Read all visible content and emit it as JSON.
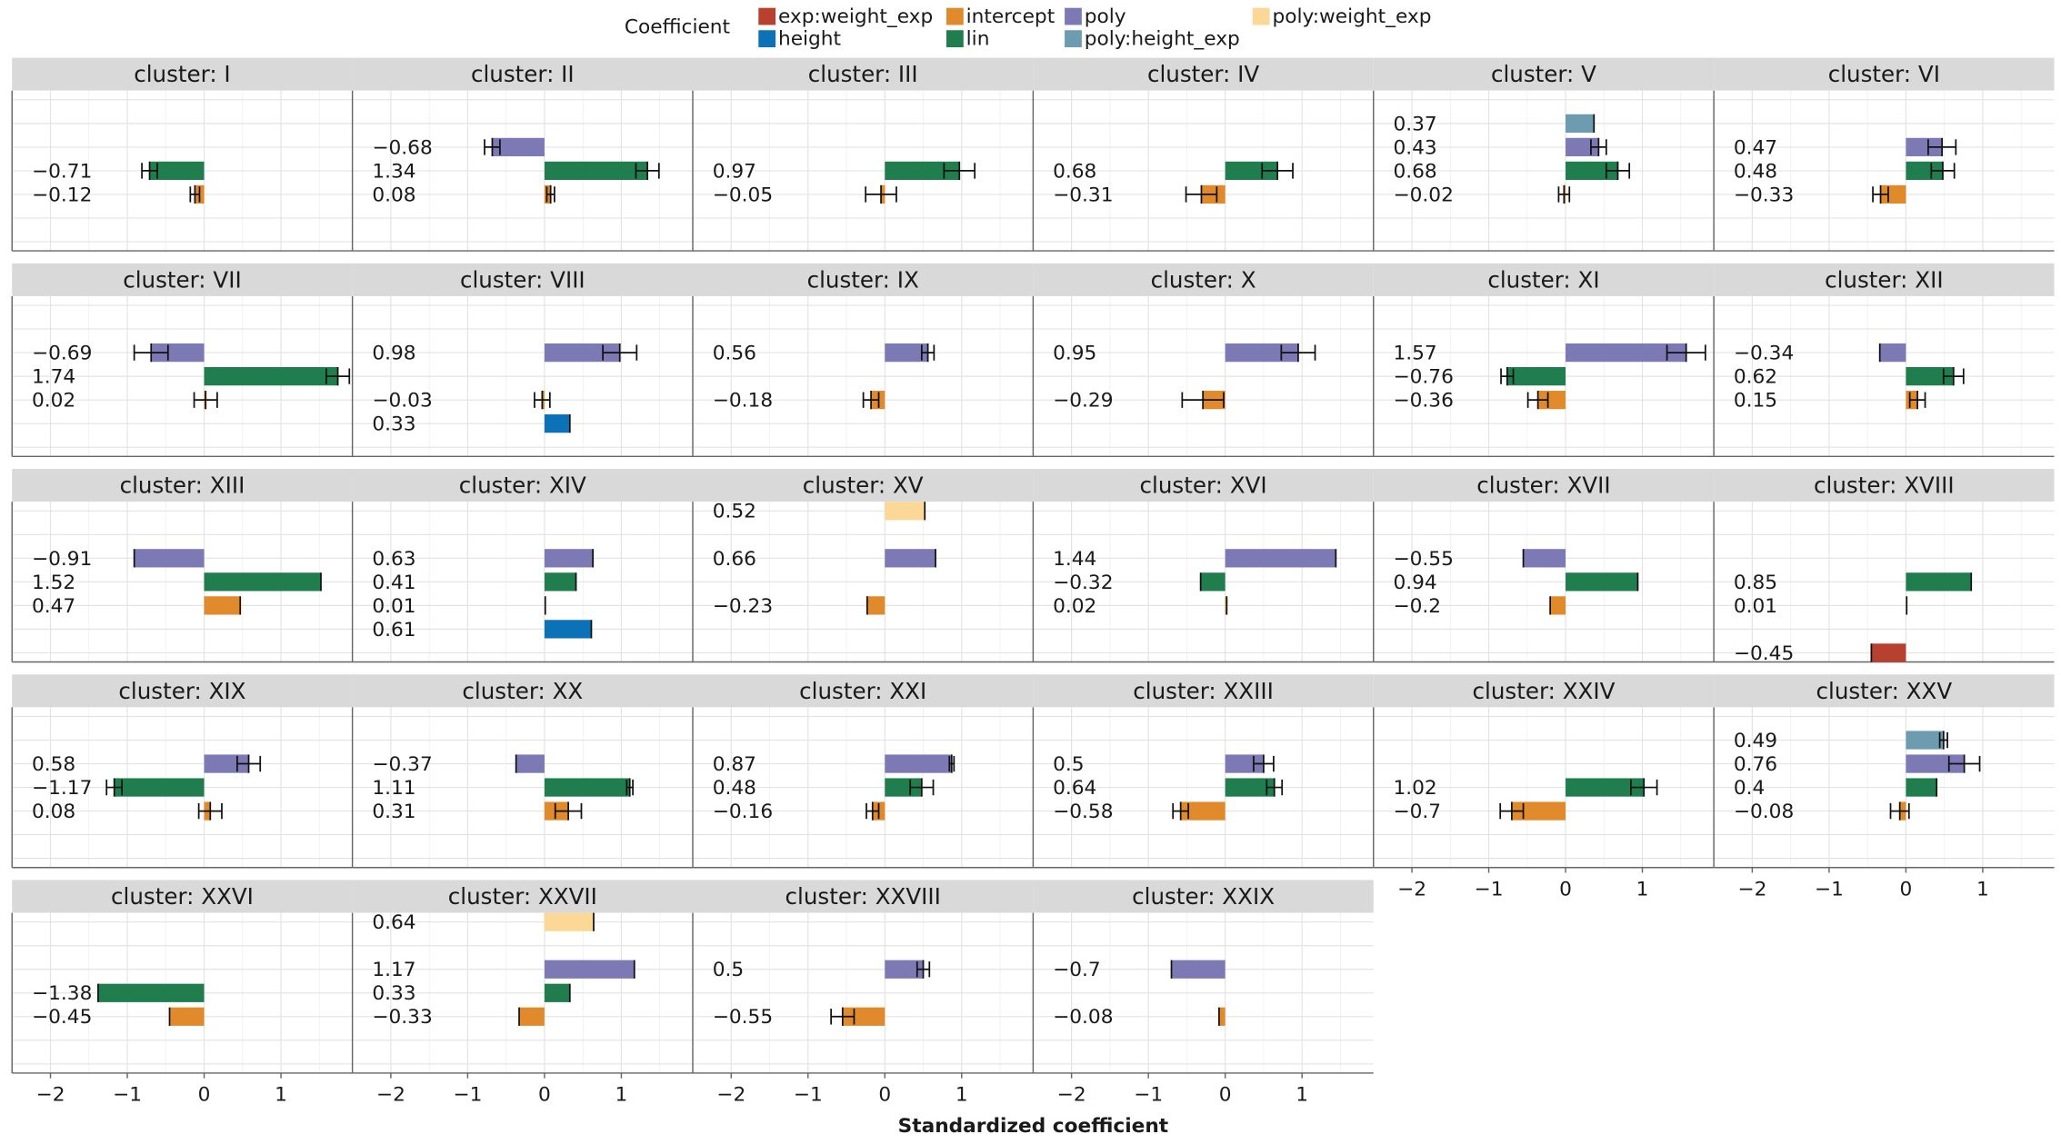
{
  "chart_data": {
    "type": "bar",
    "orientation": "horizontal",
    "legend_title": "Coefficient",
    "xlabel": "Standardized coefficient",
    "xlim": [
      -2.5,
      1.93
    ],
    "xticks": [
      {
        "value": -2,
        "label": "−2"
      },
      {
        "value": -1,
        "label": "−1"
      },
      0,
      1
    ],
    "minor_xticks": [
      -1.5,
      -0.5,
      0.5,
      1.5
    ],
    "grid": true,
    "ncol": 6,
    "coefficients": [
      {
        "name": "exp:weight_exp",
        "color": "#b8402e"
      },
      {
        "name": "height",
        "color": "#0c72b8"
      },
      {
        "name": "intercept",
        "color": "#e08a2c"
      },
      {
        "name": "lin",
        "color": "#1f7d4e"
      },
      {
        "name": "poly",
        "color": "#7c79b5"
      },
      {
        "name": "poly:height_exp",
        "color": "#6d9bb0"
      },
      {
        "name": "poly:weight_exp",
        "color": "#fbd896"
      }
    ],
    "panels": [
      {
        "title": "cluster: I",
        "bars": [
          {
            "coefficient": "lin",
            "value": -0.71,
            "label": "−0.71",
            "error": 0.1
          },
          {
            "coefficient": "intercept",
            "value": -0.12,
            "label": "−0.12",
            "error": 0.06
          }
        ]
      },
      {
        "title": "cluster: II",
        "bars": [
          {
            "coefficient": "poly",
            "value": -0.68,
            "label": "−0.68",
            "error": 0.1
          },
          {
            "coefficient": "lin",
            "value": 1.34,
            "label": "1.34",
            "error": 0.15
          },
          {
            "coefficient": "intercept",
            "value": 0.08,
            "label": "0.08",
            "error": 0.05
          }
        ]
      },
      {
        "title": "cluster: III",
        "bars": [
          {
            "coefficient": "lin",
            "value": 0.97,
            "label": "0.97",
            "error": 0.2
          },
          {
            "coefficient": "intercept",
            "value": -0.05,
            "label": "−0.05",
            "error": 0.2
          }
        ]
      },
      {
        "title": "cluster: IV",
        "bars": [
          {
            "coefficient": "lin",
            "value": 0.68,
            "label": "0.68",
            "error": 0.2
          },
          {
            "coefficient": "intercept",
            "value": -0.31,
            "label": "−0.31",
            "error": 0.2
          }
        ]
      },
      {
        "title": "cluster: V",
        "bars": [
          {
            "coefficient": "poly:height_exp",
            "value": 0.37,
            "label": "0.37"
          },
          {
            "coefficient": "poly",
            "value": 0.43,
            "label": "0.43",
            "error": 0.1
          },
          {
            "coefficient": "lin",
            "value": 0.68,
            "label": "0.68",
            "error": 0.15
          },
          {
            "coefficient": "intercept",
            "value": -0.02,
            "label": "−0.02",
            "error": 0.07
          }
        ]
      },
      {
        "title": "cluster: VI",
        "bars": [
          {
            "coefficient": "poly",
            "value": 0.47,
            "label": "0.47",
            "error": 0.18
          },
          {
            "coefficient": "lin",
            "value": 0.48,
            "label": "0.48",
            "error": 0.15
          },
          {
            "coefficient": "intercept",
            "value": -0.33,
            "label": "−0.33",
            "error": 0.1
          }
        ]
      },
      {
        "title": "cluster: VII",
        "bars": [
          {
            "coefficient": "poly",
            "value": -0.69,
            "label": "−0.69",
            "error": 0.22
          },
          {
            "coefficient": "lin",
            "value": 1.74,
            "label": "1.74",
            "error": 0.15
          },
          {
            "coefficient": "intercept",
            "value": 0.02,
            "label": "0.02",
            "error": 0.15
          }
        ]
      },
      {
        "title": "cluster: VIII",
        "bars": [
          {
            "coefficient": "poly",
            "value": 0.98,
            "label": "0.98",
            "error": 0.22
          },
          {
            "coefficient": "intercept",
            "value": -0.03,
            "label": "−0.03",
            "error": 0.1
          },
          {
            "coefficient": "height",
            "value": 0.33,
            "label": "0.33"
          }
        ]
      },
      {
        "title": "cluster: IX",
        "bars": [
          {
            "coefficient": "poly",
            "value": 0.56,
            "label": "0.56",
            "error": 0.08
          },
          {
            "coefficient": "intercept",
            "value": -0.18,
            "label": "−0.18",
            "error": 0.1
          }
        ]
      },
      {
        "title": "cluster: X",
        "bars": [
          {
            "coefficient": "poly",
            "value": 0.95,
            "label": "0.95",
            "error": 0.22
          },
          {
            "coefficient": "intercept",
            "value": -0.29,
            "label": "−0.29",
            "error": 0.27
          }
        ]
      },
      {
        "title": "cluster: XI",
        "bars": [
          {
            "coefficient": "poly",
            "value": 1.57,
            "label": "1.57",
            "error": 0.25
          },
          {
            "coefficient": "lin",
            "value": -0.76,
            "label": "−0.76",
            "error": 0.08
          },
          {
            "coefficient": "intercept",
            "value": -0.36,
            "label": "−0.36",
            "error": 0.13
          }
        ]
      },
      {
        "title": "cluster: XII",
        "bars": [
          {
            "coefficient": "poly",
            "value": -0.34,
            "label": "−0.34"
          },
          {
            "coefficient": "lin",
            "value": 0.62,
            "label": "0.62",
            "error": 0.13
          },
          {
            "coefficient": "intercept",
            "value": 0.15,
            "label": "0.15",
            "error": 0.1
          }
        ]
      },
      {
        "title": "cluster: XIII",
        "bars": [
          {
            "coefficient": "poly",
            "value": -0.91,
            "label": "−0.91"
          },
          {
            "coefficient": "lin",
            "value": 1.52,
            "label": "1.52"
          },
          {
            "coefficient": "intercept",
            "value": 0.47,
            "label": "0.47"
          }
        ]
      },
      {
        "title": "cluster: XIV",
        "bars": [
          {
            "coefficient": "poly",
            "value": 0.63,
            "label": "0.63"
          },
          {
            "coefficient": "lin",
            "value": 0.41,
            "label": "0.41"
          },
          {
            "coefficient": "intercept",
            "value": 0.01,
            "label": "0.01"
          },
          {
            "coefficient": "height",
            "value": 0.61,
            "label": "0.61"
          }
        ]
      },
      {
        "title": "cluster: XV",
        "bars": [
          {
            "coefficient": "poly:weight_exp",
            "value": 0.52,
            "label": "0.52"
          },
          {
            "coefficient": "poly",
            "value": 0.66,
            "label": "0.66"
          },
          {
            "coefficient": "intercept",
            "value": -0.23,
            "label": "−0.23"
          }
        ]
      },
      {
        "title": "cluster: XVI",
        "bars": [
          {
            "coefficient": "poly",
            "value": 1.44,
            "label": "1.44"
          },
          {
            "coefficient": "lin",
            "value": -0.32,
            "label": "−0.32"
          },
          {
            "coefficient": "intercept",
            "value": 0.02,
            "label": "0.02"
          }
        ]
      },
      {
        "title": "cluster: XVII",
        "bars": [
          {
            "coefficient": "poly",
            "value": -0.55,
            "label": "−0.55"
          },
          {
            "coefficient": "lin",
            "value": 0.94,
            "label": "0.94"
          },
          {
            "coefficient": "intercept",
            "value": -0.2,
            "label": "−0.2"
          }
        ]
      },
      {
        "title": "cluster: XVIII",
        "bars": [
          {
            "coefficient": "lin",
            "value": 0.85,
            "label": "0.85"
          },
          {
            "coefficient": "intercept",
            "value": 0.01,
            "label": "0.01"
          },
          {
            "coefficient": "exp:weight_exp",
            "value": -0.45,
            "label": "−0.45"
          }
        ]
      },
      {
        "title": "cluster: XIX",
        "bars": [
          {
            "coefficient": "poly",
            "value": 0.58,
            "label": "0.58",
            "error": 0.15
          },
          {
            "coefficient": "lin",
            "value": -1.17,
            "label": "−1.17",
            "error": 0.1
          },
          {
            "coefficient": "intercept",
            "value": 0.08,
            "label": "0.08",
            "error": 0.15
          }
        ]
      },
      {
        "title": "cluster: XX",
        "bars": [
          {
            "coefficient": "poly",
            "value": -0.37,
            "label": "−0.37"
          },
          {
            "coefficient": "lin",
            "value": 1.11,
            "label": "1.11",
            "error": 0.04
          },
          {
            "coefficient": "intercept",
            "value": 0.31,
            "label": "0.31",
            "error": 0.17
          }
        ]
      },
      {
        "title": "cluster: XXI",
        "bars": [
          {
            "coefficient": "poly",
            "value": 0.87,
            "label": "0.87",
            "error": 0.03
          },
          {
            "coefficient": "lin",
            "value": 0.48,
            "label": "0.48",
            "error": 0.15
          },
          {
            "coefficient": "intercept",
            "value": -0.16,
            "label": "−0.16",
            "error": 0.08
          }
        ]
      },
      {
        "title": "cluster: XXIII",
        "bars": [
          {
            "coefficient": "poly",
            "value": 0.5,
            "label": "0.5",
            "error": 0.13
          },
          {
            "coefficient": "lin",
            "value": 0.64,
            "label": "0.64",
            "error": 0.1
          },
          {
            "coefficient": "intercept",
            "value": -0.58,
            "label": "−0.58",
            "error": 0.1
          }
        ]
      },
      {
        "title": "cluster: XXIV",
        "bars": [
          {
            "coefficient": "lin",
            "value": 1.02,
            "label": "1.02",
            "error": 0.17
          },
          {
            "coefficient": "intercept",
            "value": -0.7,
            "label": "−0.7",
            "error": 0.15
          }
        ]
      },
      {
        "title": "cluster: XXV",
        "bars": [
          {
            "coefficient": "poly:height_exp",
            "value": 0.49,
            "label": "0.49",
            "error": 0.05
          },
          {
            "coefficient": "poly",
            "value": 0.76,
            "label": "0.76",
            "error": 0.2
          },
          {
            "coefficient": "lin",
            "value": 0.4,
            "label": "0.4"
          },
          {
            "coefficient": "intercept",
            "value": -0.08,
            "label": "−0.08",
            "error": 0.12
          }
        ]
      },
      {
        "title": "cluster: XXVI",
        "bars": [
          {
            "coefficient": "lin",
            "value": -1.38,
            "label": "−1.38"
          },
          {
            "coefficient": "intercept",
            "value": -0.45,
            "label": "−0.45"
          }
        ]
      },
      {
        "title": "cluster: XXVII",
        "bars": [
          {
            "coefficient": "poly:weight_exp",
            "value": 0.64,
            "label": "0.64"
          },
          {
            "coefficient": "poly",
            "value": 1.17,
            "label": "1.17"
          },
          {
            "coefficient": "lin",
            "value": 0.33,
            "label": "0.33"
          },
          {
            "coefficient": "intercept",
            "value": -0.33,
            "label": "−0.33"
          }
        ]
      },
      {
        "title": "cluster: XXVIII",
        "bars": [
          {
            "coefficient": "poly",
            "value": 0.5,
            "label": "0.5",
            "error": 0.08
          },
          {
            "coefficient": "intercept",
            "value": -0.55,
            "label": "−0.55",
            "error": 0.15
          }
        ]
      },
      {
        "title": "cluster: XXIX",
        "bars": [
          {
            "coefficient": "poly",
            "value": -0.7,
            "label": "−0.7"
          },
          {
            "coefficient": "intercept",
            "value": -0.08,
            "label": "−0.08"
          }
        ]
      }
    ]
  }
}
